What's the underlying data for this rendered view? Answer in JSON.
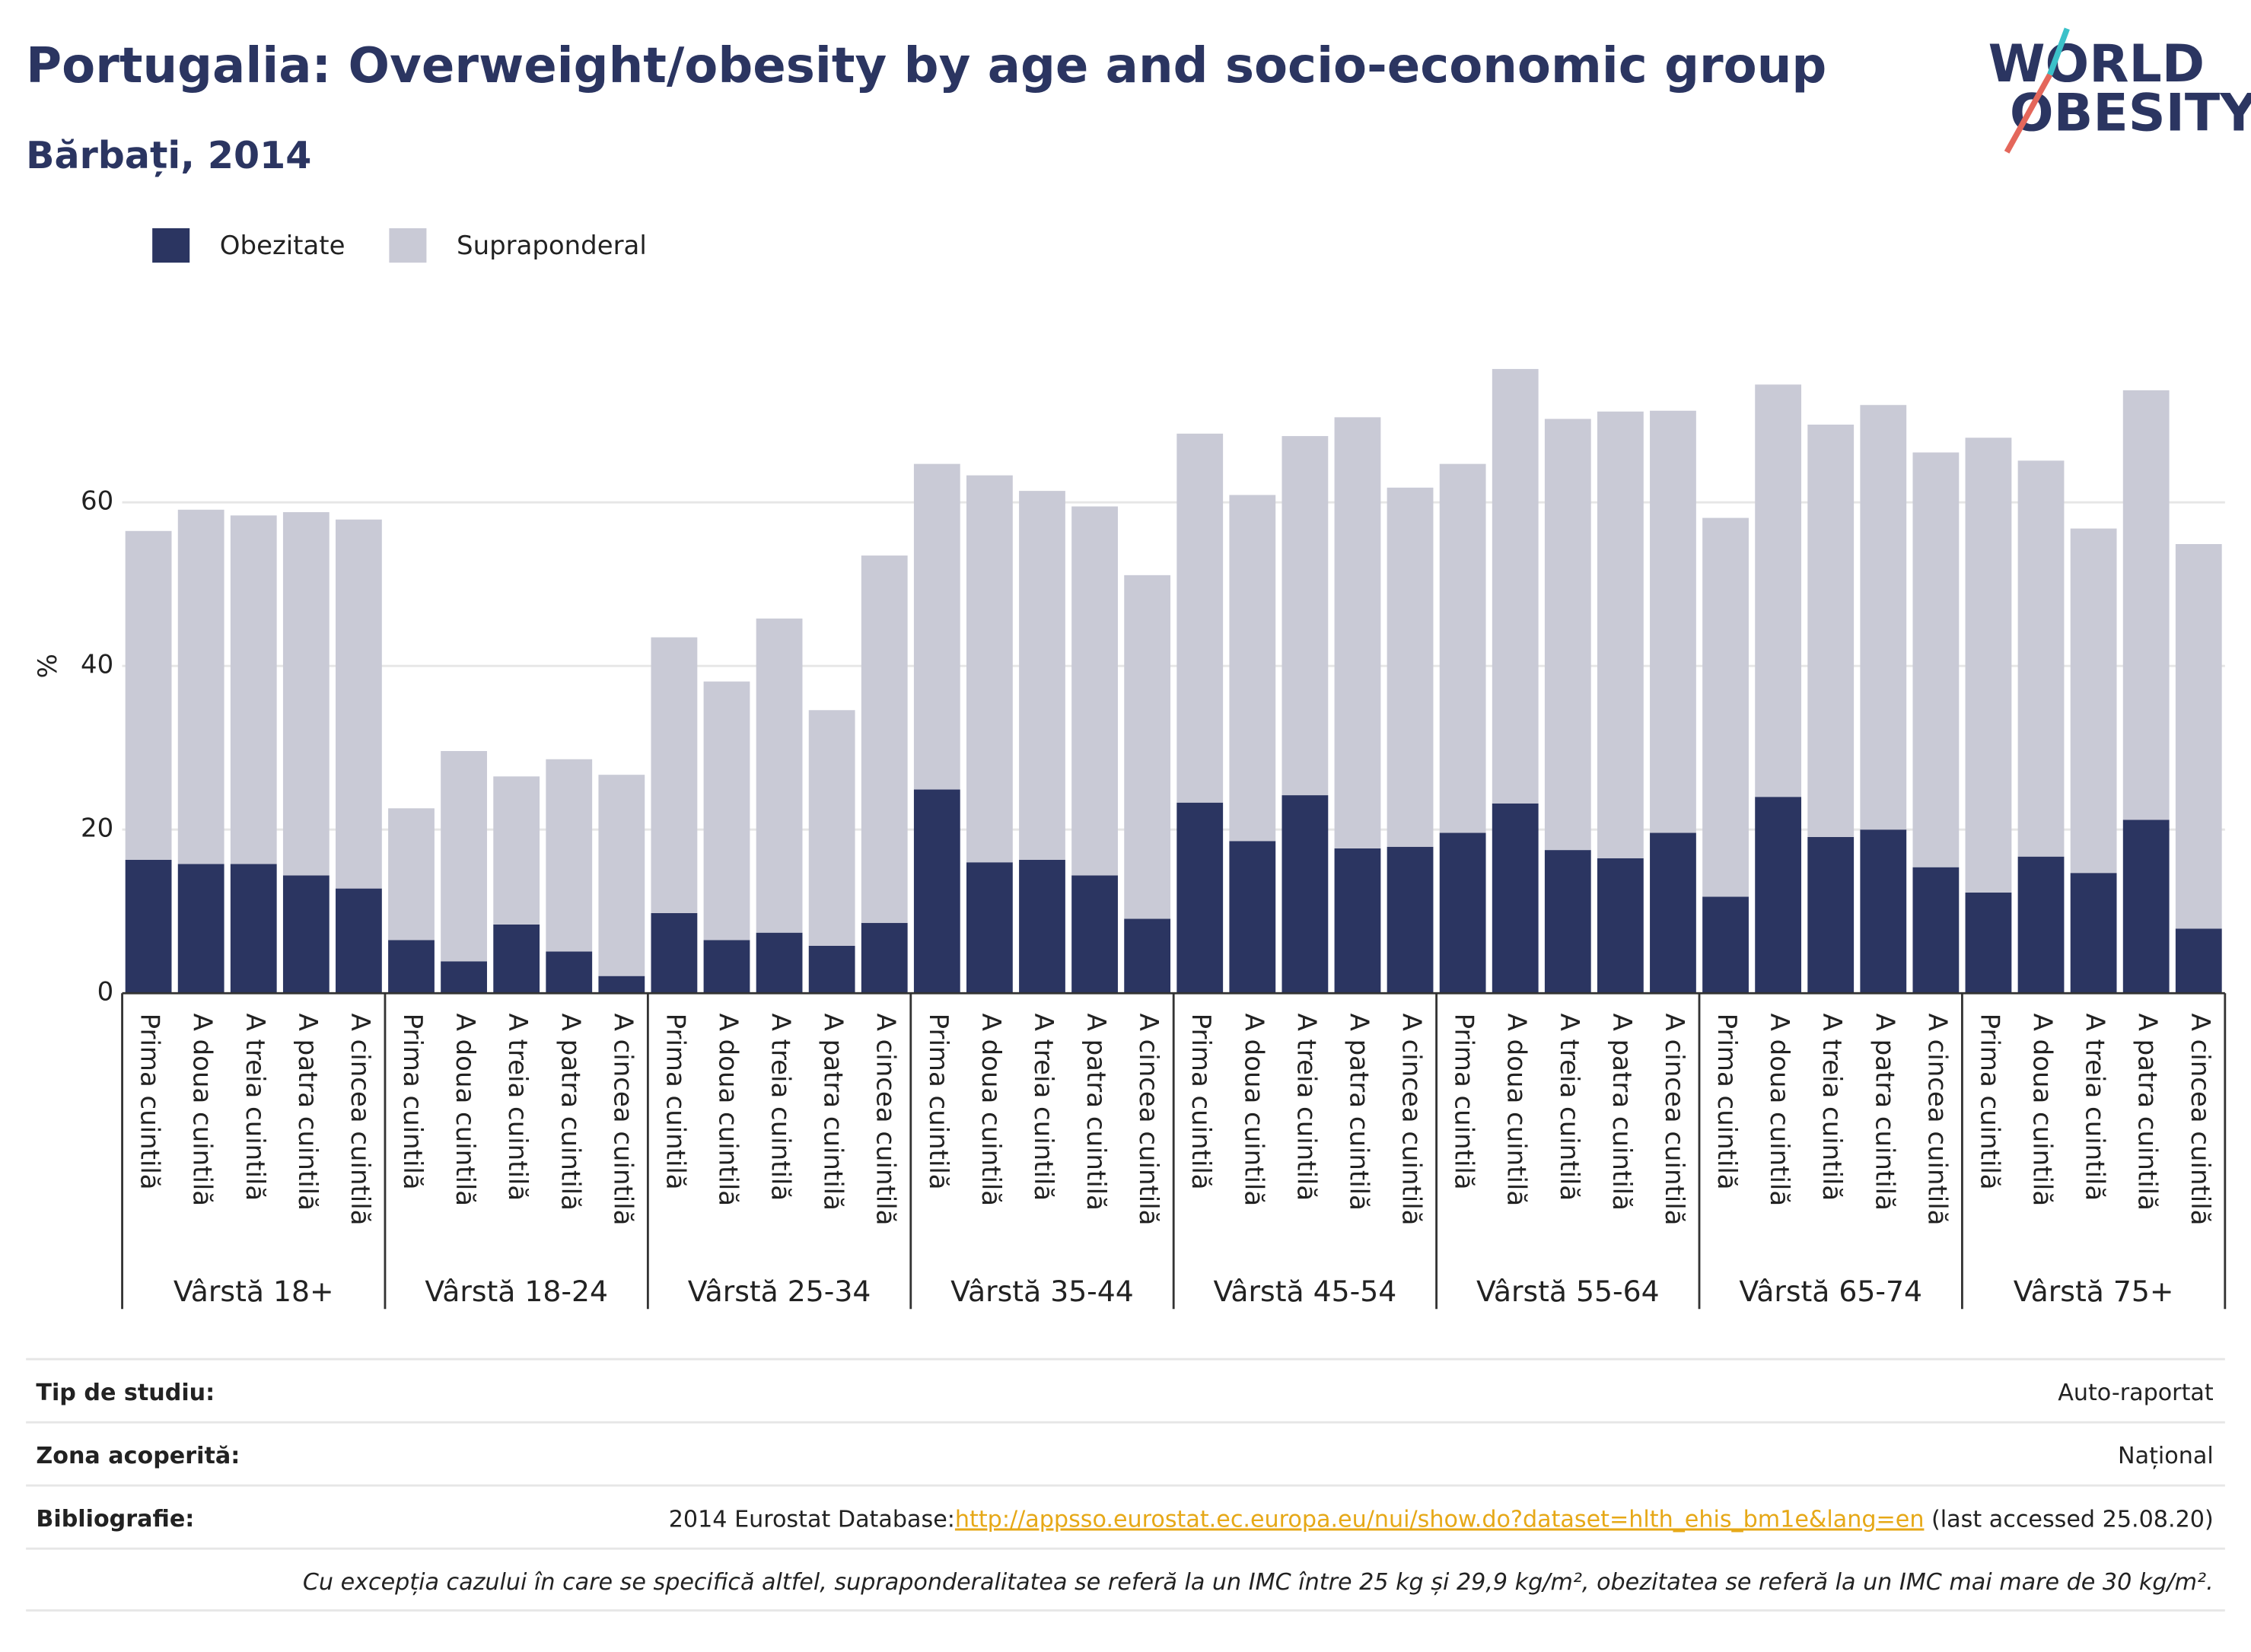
{
  "chart_data": {
    "type": "stacked_bar",
    "title": "Portugalia: Overweight/obesity by age and socio-economic group",
    "subtitle": "Bărbați, 2014",
    "logo": [
      "WORLD",
      "OBESITY"
    ],
    "y_label": "%",
    "ylim": [
      0,
      80
    ],
    "yticks": [
      0,
      20,
      40,
      60
    ],
    "grid": true,
    "groups": [
      "Vârstă 18+",
      "Vârstă 18-24",
      "Vârstă 25-34",
      "Vârstă 35-44",
      "Vârstă 45-54",
      "Vârstă 55-64",
      "Vârstă 65-74",
      "Vârstă 75+"
    ],
    "categories": [
      "Prima cuintilă",
      "A doua cuintilă",
      "A treia cuintilă",
      "A patra cuintilă",
      "A cincea cuintilă",
      "Prima cuintilă",
      "A doua cuintilă",
      "A treia cuintilă",
      "A patra cuintilă",
      "A cincea cuintilă",
      "Prima cuintilă",
      "A doua cuintilă",
      "A treia cuintilă",
      "A patra cuintilă",
      "A cincea cuintilă",
      "Prima cuintilă",
      "A doua cuintilă",
      "A treia cuintilă",
      "A patra cuintilă",
      "A cincea cuintilă",
      "Prima cuintilă",
      "A doua cuintilă",
      "A treia cuintilă",
      "A patra cuintilă",
      "A cincea cuintilă",
      "Prima cuintilă",
      "A doua cuintilă",
      "A treia cuintilă",
      "A patra cuintilă",
      "A cincea cuintilă",
      "Prima cuintilă",
      "A doua cuintilă",
      "A treia cuintilă",
      "A patra cuintilă",
      "A cincea cuintilă",
      "Prima cuintilă",
      "A doua cuintilă",
      "A treia cuintilă",
      "A patra cuintilă",
      "A cincea cuintilă"
    ],
    "series": [
      {
        "name": "Obezitate",
        "color": "#2b3561",
        "values": [
          16.3,
          15.8,
          15.8,
          14.4,
          12.8,
          6.5,
          3.9,
          8.4,
          5.1,
          2.1,
          9.8,
          6.5,
          7.4,
          5.8,
          8.6,
          24.9,
          16.0,
          16.3,
          14.4,
          9.1,
          23.3,
          18.6,
          24.2,
          17.7,
          17.9,
          19.6,
          23.2,
          17.5,
          16.5,
          19.6,
          11.8,
          24.0,
          19.1,
          20.0,
          15.4,
          12.3,
          16.7,
          14.7,
          21.2,
          7.9
        ]
      },
      {
        "name": "Supraponderal",
        "color": "#c9cad6",
        "values": [
          40.2,
          43.3,
          42.6,
          44.4,
          45.1,
          16.1,
          25.7,
          18.1,
          23.5,
          24.6,
          33.7,
          31.6,
          38.4,
          28.8,
          44.9,
          39.8,
          47.3,
          45.1,
          45.1,
          42.0,
          45.1,
          42.3,
          43.9,
          52.7,
          43.9,
          45.1,
          53.1,
          52.7,
          54.6,
          51.6,
          46.3,
          50.4,
          50.4,
          51.9,
          50.7,
          55.6,
          48.4,
          42.1,
          52.5,
          47.0
        ]
      }
    ],
    "footer": {
      "rows": [
        {
          "label": "Tip de studiu:",
          "value": "Auto-raportat"
        },
        {
          "label": "Zona acoperită:",
          "value": "Național"
        }
      ],
      "bibliography": {
        "label": "Bibliografie:",
        "prefix": "2014 Eurostat Database:",
        "link": "http://appsso.eurostat.ec.europa.eu/nui/show.do?dataset=hlth_ehis_bm1e&lang=en",
        "suffix": " (last accessed 25.08.20)"
      },
      "note": "Cu excepția cazului în care se specifică altfel, supraponderalitatea se referă la un IMC între 25 kg și 29,9 kg/m², obezitatea se referă la un IMC mai mare de 30 kg/m²."
    }
  }
}
